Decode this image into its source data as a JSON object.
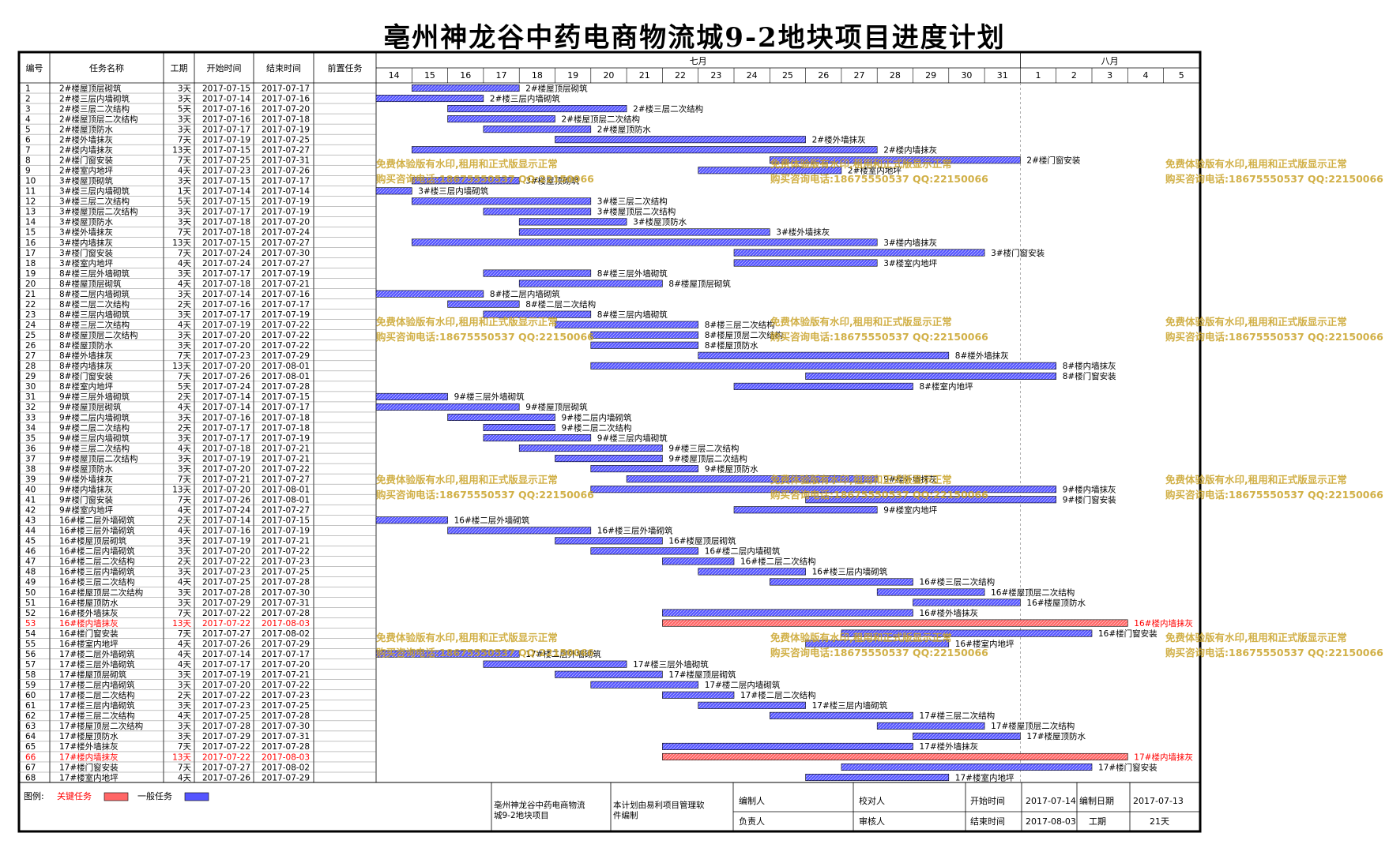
{
  "title": "亳州神龙谷中药电商物流城9-2地块项目进度计划",
  "table": {
    "headers": [
      "编号",
      "任务名称",
      "工期",
      "开始时间",
      "结束时间",
      "前置任务"
    ],
    "months": [
      "七月",
      "八月"
    ],
    "days": [
      "14",
      "15",
      "16",
      "17",
      "18",
      "19",
      "20",
      "21",
      "22",
      "23",
      "24",
      "25",
      "26",
      "27",
      "28",
      "29",
      "30",
      "31",
      "1",
      "2",
      "3",
      "4",
      "5"
    ]
  },
  "tasks": [
    [
      "1",
      "2#楼屋顶层砌筑",
      "3天",
      "2017-07-15",
      "2017-07-17",
      0
    ],
    [
      "2",
      "2#楼三层内墙砌筑",
      "3天",
      "2017-07-14",
      "2017-07-16",
      0
    ],
    [
      "3",
      "2#楼三层二次结构",
      "5天",
      "2017-07-16",
      "2017-07-20",
      0
    ],
    [
      "4",
      "2#楼屋顶层二次结构",
      "3天",
      "2017-07-16",
      "2017-07-18",
      0
    ],
    [
      "5",
      "2#楼屋顶防水",
      "3天",
      "2017-07-17",
      "2017-07-19",
      0
    ],
    [
      "6",
      "2#楼外墙抹灰",
      "7天",
      "2017-07-19",
      "2017-07-25",
      0
    ],
    [
      "7",
      "2#楼内墙抹灰",
      "13天",
      "2017-07-15",
      "2017-07-27",
      0
    ],
    [
      "8",
      "2#楼门窗安装",
      "7天",
      "2017-07-25",
      "2017-07-31",
      0
    ],
    [
      "9",
      "2#楼室内地坪",
      "4天",
      "2017-07-23",
      "2017-07-26",
      0
    ],
    [
      "10",
      "3#楼屋顶砌筑",
      "3天",
      "2017-07-15",
      "2017-07-17",
      0
    ],
    [
      "11",
      "3#楼三层内墙砌筑",
      "1天",
      "2017-07-14",
      "2017-07-14",
      0
    ],
    [
      "12",
      "3#楼三层二次结构",
      "5天",
      "2017-07-15",
      "2017-07-19",
      0
    ],
    [
      "13",
      "3#楼屋顶层二次结构",
      "3天",
      "2017-07-17",
      "2017-07-19",
      0
    ],
    [
      "14",
      "3#楼屋顶防水",
      "3天",
      "2017-07-18",
      "2017-07-20",
      0
    ],
    [
      "15",
      "3#楼外墙抹灰",
      "7天",
      "2017-07-18",
      "2017-07-24",
      0
    ],
    [
      "16",
      "3#楼内墙抹灰",
      "13天",
      "2017-07-15",
      "2017-07-27",
      0
    ],
    [
      "17",
      "3#楼门窗安装",
      "7天",
      "2017-07-24",
      "2017-07-30",
      0
    ],
    [
      "18",
      "3#楼室内地坪",
      "4天",
      "2017-07-24",
      "2017-07-27",
      0
    ],
    [
      "19",
      "8#楼三层外墙砌筑",
      "3天",
      "2017-07-17",
      "2017-07-19",
      0
    ],
    [
      "20",
      "8#楼屋顶层砌筑",
      "4天",
      "2017-07-18",
      "2017-07-21",
      0
    ],
    [
      "21",
      "8#楼二层内墙砌筑",
      "3天",
      "2017-07-14",
      "2017-07-16",
      0
    ],
    [
      "22",
      "8#楼二层二次结构",
      "2天",
      "2017-07-16",
      "2017-07-17",
      0
    ],
    [
      "23",
      "8#楼三层内墙砌筑",
      "3天",
      "2017-07-17",
      "2017-07-19",
      0
    ],
    [
      "24",
      "8#楼三层二次结构",
      "4天",
      "2017-07-19",
      "2017-07-22",
      0
    ],
    [
      "25",
      "8#楼屋顶层二次结构",
      "3天",
      "2017-07-20",
      "2017-07-22",
      0
    ],
    [
      "26",
      "8#楼屋顶防水",
      "3天",
      "2017-07-20",
      "2017-07-22",
      0
    ],
    [
      "27",
      "8#楼外墙抹灰",
      "7天",
      "2017-07-23",
      "2017-07-29",
      0
    ],
    [
      "28",
      "8#楼内墙抹灰",
      "13天",
      "2017-07-20",
      "2017-08-01",
      0
    ],
    [
      "29",
      "8#楼门窗安装",
      "7天",
      "2017-07-26",
      "2017-08-01",
      0
    ],
    [
      "30",
      "8#楼室内地坪",
      "5天",
      "2017-07-24",
      "2017-07-28",
      0
    ],
    [
      "31",
      "9#楼三层外墙砌筑",
      "2天",
      "2017-07-14",
      "2017-07-15",
      0
    ],
    [
      "32",
      "9#楼屋顶层砌筑",
      "4天",
      "2017-07-14",
      "2017-07-17",
      0
    ],
    [
      "33",
      "9#楼二层内墙砌筑",
      "3天",
      "2017-07-16",
      "2017-07-18",
      0
    ],
    [
      "34",
      "9#楼二层二次结构",
      "2天",
      "2017-07-17",
      "2017-07-18",
      0
    ],
    [
      "35",
      "9#楼三层内墙砌筑",
      "3天",
      "2017-07-17",
      "2017-07-19",
      0
    ],
    [
      "36",
      "9#楼三层二次结构",
      "4天",
      "2017-07-18",
      "2017-07-21",
      0
    ],
    [
      "37",
      "9#楼屋顶层二次结构",
      "3天",
      "2017-07-19",
      "2017-07-21",
      0
    ],
    [
      "38",
      "9#楼屋顶防水",
      "3天",
      "2017-07-20",
      "2017-07-22",
      0
    ],
    [
      "39",
      "9#楼外墙抹灰",
      "7天",
      "2017-07-21",
      "2017-07-27",
      0
    ],
    [
      "40",
      "9#楼内墙抹灰",
      "13天",
      "2017-07-20",
      "2017-08-01",
      0
    ],
    [
      "41",
      "9#楼门窗安装",
      "7天",
      "2017-07-26",
      "2017-08-01",
      0
    ],
    [
      "42",
      "9#楼室内地坪",
      "4天",
      "2017-07-24",
      "2017-07-27",
      0
    ],
    [
      "43",
      "16#楼二层外墙砌筑",
      "2天",
      "2017-07-14",
      "2017-07-15",
      0
    ],
    [
      "44",
      "16#楼三层外墙砌筑",
      "4天",
      "2017-07-16",
      "2017-07-19",
      0
    ],
    [
      "45",
      "16#楼屋顶层砌筑",
      "3天",
      "2017-07-19",
      "2017-07-21",
      0
    ],
    [
      "46",
      "16#楼二层内墙砌筑",
      "3天",
      "2017-07-20",
      "2017-07-22",
      0
    ],
    [
      "47",
      "16#楼二层二次结构",
      "2天",
      "2017-07-22",
      "2017-07-23",
      0
    ],
    [
      "48",
      "16#楼三层内墙砌筑",
      "3天",
      "2017-07-23",
      "2017-07-25",
      0
    ],
    [
      "49",
      "16#楼三层二次结构",
      "4天",
      "2017-07-25",
      "2017-07-28",
      0
    ],
    [
      "50",
      "16#楼屋顶层二次结构",
      "3天",
      "2017-07-28",
      "2017-07-30",
      0
    ],
    [
      "51",
      "16#楼屋顶防水",
      "3天",
      "2017-07-29",
      "2017-07-31",
      0
    ],
    [
      "52",
      "16#楼外墙抹灰",
      "7天",
      "2017-07-22",
      "2017-07-28",
      0
    ],
    [
      "53",
      "16#楼内墙抹灰",
      "13天",
      "2017-07-22",
      "2017-08-03",
      1
    ],
    [
      "54",
      "16#楼门窗安装",
      "7天",
      "2017-07-27",
      "2017-08-02",
      0
    ],
    [
      "55",
      "16#楼室内地坪",
      "4天",
      "2017-07-26",
      "2017-07-29",
      0
    ],
    [
      "56",
      "17#楼二层外墙砌筑",
      "4天",
      "2017-07-14",
      "2017-07-17",
      0
    ],
    [
      "57",
      "17#楼三层外墙砌筑",
      "4天",
      "2017-07-17",
      "2017-07-20",
      0
    ],
    [
      "58",
      "17#楼屋顶层砌筑",
      "3天",
      "2017-07-19",
      "2017-07-21",
      0
    ],
    [
      "59",
      "17#楼二层内墙砌筑",
      "3天",
      "2017-07-20",
      "2017-07-22",
      0
    ],
    [
      "60",
      "17#楼二层二次结构",
      "2天",
      "2017-07-22",
      "2017-07-23",
      0
    ],
    [
      "61",
      "17#楼三层内墙砌筑",
      "3天",
      "2017-07-23",
      "2017-07-25",
      0
    ],
    [
      "62",
      "17#楼三层二次结构",
      "4天",
      "2017-07-25",
      "2017-07-28",
      0
    ],
    [
      "63",
      "17#楼屋顶层二次结构",
      "3天",
      "2017-07-28",
      "2017-07-30",
      0
    ],
    [
      "64",
      "17#楼屋顶防水",
      "3天",
      "2017-07-29",
      "2017-07-31",
      0
    ],
    [
      "65",
      "17#楼外墙抹灰",
      "7天",
      "2017-07-22",
      "2017-07-28",
      0
    ],
    [
      "66",
      "17#楼内墙抹灰",
      "13天",
      "2017-07-22",
      "2017-08-03",
      1
    ],
    [
      "67",
      "17#楼门窗安装",
      "7天",
      "2017-07-27",
      "2017-08-02",
      0
    ],
    [
      "68",
      "17#楼室内地坪",
      "4天",
      "2017-07-26",
      "2017-07-29",
      0
    ]
  ],
  "colors": {
    "normal_bar": "#5555ff",
    "critical_bar": "#ff6666",
    "critical_text": "#ff0000",
    "watermark": "#c9a227"
  },
  "chart_data": {
    "type": "gantt",
    "x_range": [
      "2017-07-14",
      "2017-08-05"
    ],
    "x_tick_labels": [
      "14",
      "15",
      "16",
      "17",
      "18",
      "19",
      "20",
      "21",
      "22",
      "23",
      "24",
      "25",
      "26",
      "27",
      "28",
      "29",
      "30",
      "31",
      "1",
      "2",
      "3",
      "4",
      "5"
    ]
  },
  "legend": {
    "label": "图例:",
    "critical": "关键任务",
    "normal": "一般任务"
  },
  "footer": {
    "project": "亳州神龙谷中药电商物流城9-2地块项目",
    "software": "本计划由易利项目管理软件编制",
    "compiler_label": "编制人",
    "checker_label": "校对人",
    "owner_label": "负责人",
    "reviewer_label": "审核人",
    "start_label": "开始时间",
    "start_value": "2017-07-14",
    "end_label": "结束时间",
    "end_value": "2017-08-03",
    "date_label": "编制日期",
    "date_value": "2017-07-13",
    "duration_label": "工期",
    "duration_value": "21天"
  },
  "watermark": {
    "line1": "免费体验版有水印,租用和正式版显示正常",
    "line2": "购买咨询电话:18675550537 QQ:22150066"
  }
}
